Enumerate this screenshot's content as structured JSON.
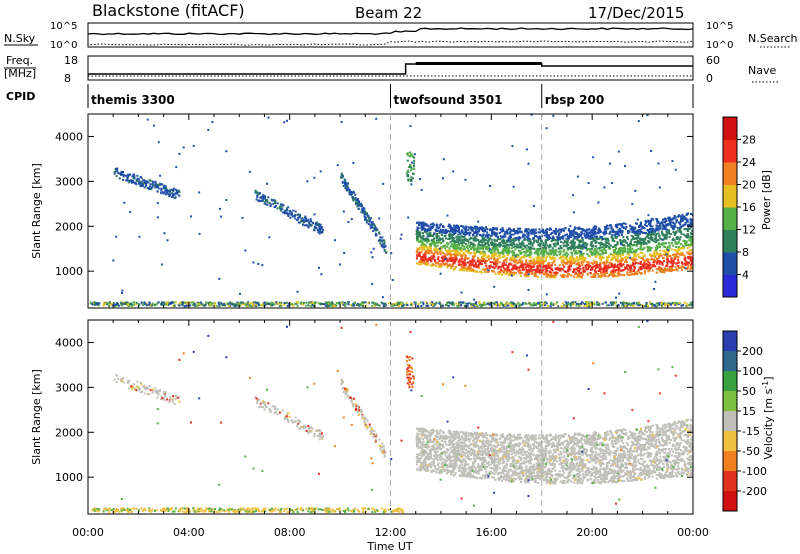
{
  "header": {
    "station": "Blackstone (fitACF)",
    "beam": "Beam 22",
    "date": "17/Dec/2015"
  },
  "top_panels": {
    "nsky_label": "N.Sky",
    "nsearch_label": "N.Search",
    "noise_ticks": [
      "10^5",
      "10^0"
    ],
    "freq_label_1": "Freq.",
    "freq_label_2": "[MHz]",
    "nave_label": "Nave",
    "freq_ticks": [
      "18",
      "8"
    ],
    "nave_ticks": [
      "60",
      "0"
    ],
    "cpid_label": "CPID",
    "cpid": [
      {
        "name": "themis 3300",
        "start_h": 0
      },
      {
        "name": "twofsound 3501",
        "start_h": 12
      },
      {
        "name": "rbsp 200",
        "start_h": 18
      }
    ]
  },
  "chart_data": [
    {
      "type": "heatmap",
      "id": "power",
      "ylabel": "Slant Range [km]",
      "xlabel": "",
      "colorbar_label": "Power [dB]",
      "colorbar_ticks": [
        "4",
        "8",
        "12",
        "16",
        "20",
        "24",
        "28"
      ],
      "colors": [
        "#2a2ad8",
        "#1f4fa8",
        "#2e7f5a",
        "#56b04a",
        "#e6c020",
        "#f08020",
        "#ee3020",
        "#d01010"
      ],
      "yticks": [
        1000,
        2000,
        3000,
        4000
      ],
      "ylim": [
        180,
        4500
      ],
      "xlim": [
        0,
        24
      ],
      "xticks_hours": [
        0,
        4,
        8,
        12,
        16,
        20,
        24
      ],
      "features": [
        {
          "name": "ground-scatter-arc-a",
          "t": [
            1.0,
            3.6
          ],
          "r": [
            3200,
            2700
          ],
          "level": 1
        },
        {
          "name": "ground-scatter-arc-b",
          "t": [
            6.6,
            9.3
          ],
          "r": [
            2700,
            1900
          ],
          "level": 1
        },
        {
          "name": "ground-scatter-arc-c",
          "t": [
            10.0,
            11.8
          ],
          "r": [
            3100,
            1500
          ],
          "level": 1
        },
        {
          "name": "near-range-band",
          "t": [
            0.0,
            24.0
          ],
          "r": [
            220,
            300
          ],
          "level": 2
        },
        {
          "name": "main-ionospheric-echo",
          "t": [
            13.0,
            24.0
          ],
          "r": [
            800,
            2400
          ],
          "level": 6
        }
      ]
    },
    {
      "type": "heatmap",
      "id": "velocity",
      "ylabel": "Slant Range [km]",
      "xlabel": "Time UT",
      "colorbar_label": "Velocity [m s^-1]",
      "colorbar_ticks": [
        "200",
        "100",
        "50",
        "15",
        "-15",
        "-50",
        "-100",
        "-200"
      ],
      "colors": [
        "#2a3fb0",
        "#2f6a8c",
        "#3aa040",
        "#80c040",
        "#c0c0b8",
        "#f0c040",
        "#f08020",
        "#e03020",
        "#d01010"
      ],
      "yticks": [
        1000,
        2000,
        3000,
        4000
      ],
      "ylim": [
        180,
        4500
      ],
      "xlim": [
        0,
        24
      ],
      "xticks": [
        "00:00",
        "04:00",
        "08:00",
        "12:00",
        "16:00",
        "20:00",
        "00:00"
      ],
      "features": [
        {
          "name": "ground-scatter-grey",
          "t": [
            13.0,
            24.0
          ],
          "r": [
            900,
            2400
          ],
          "value": 0
        },
        {
          "name": "near-range-orange",
          "t": [
            5.0,
            12.0
          ],
          "r": [
            220,
            320
          ],
          "value": -60
        }
      ]
    }
  ]
}
